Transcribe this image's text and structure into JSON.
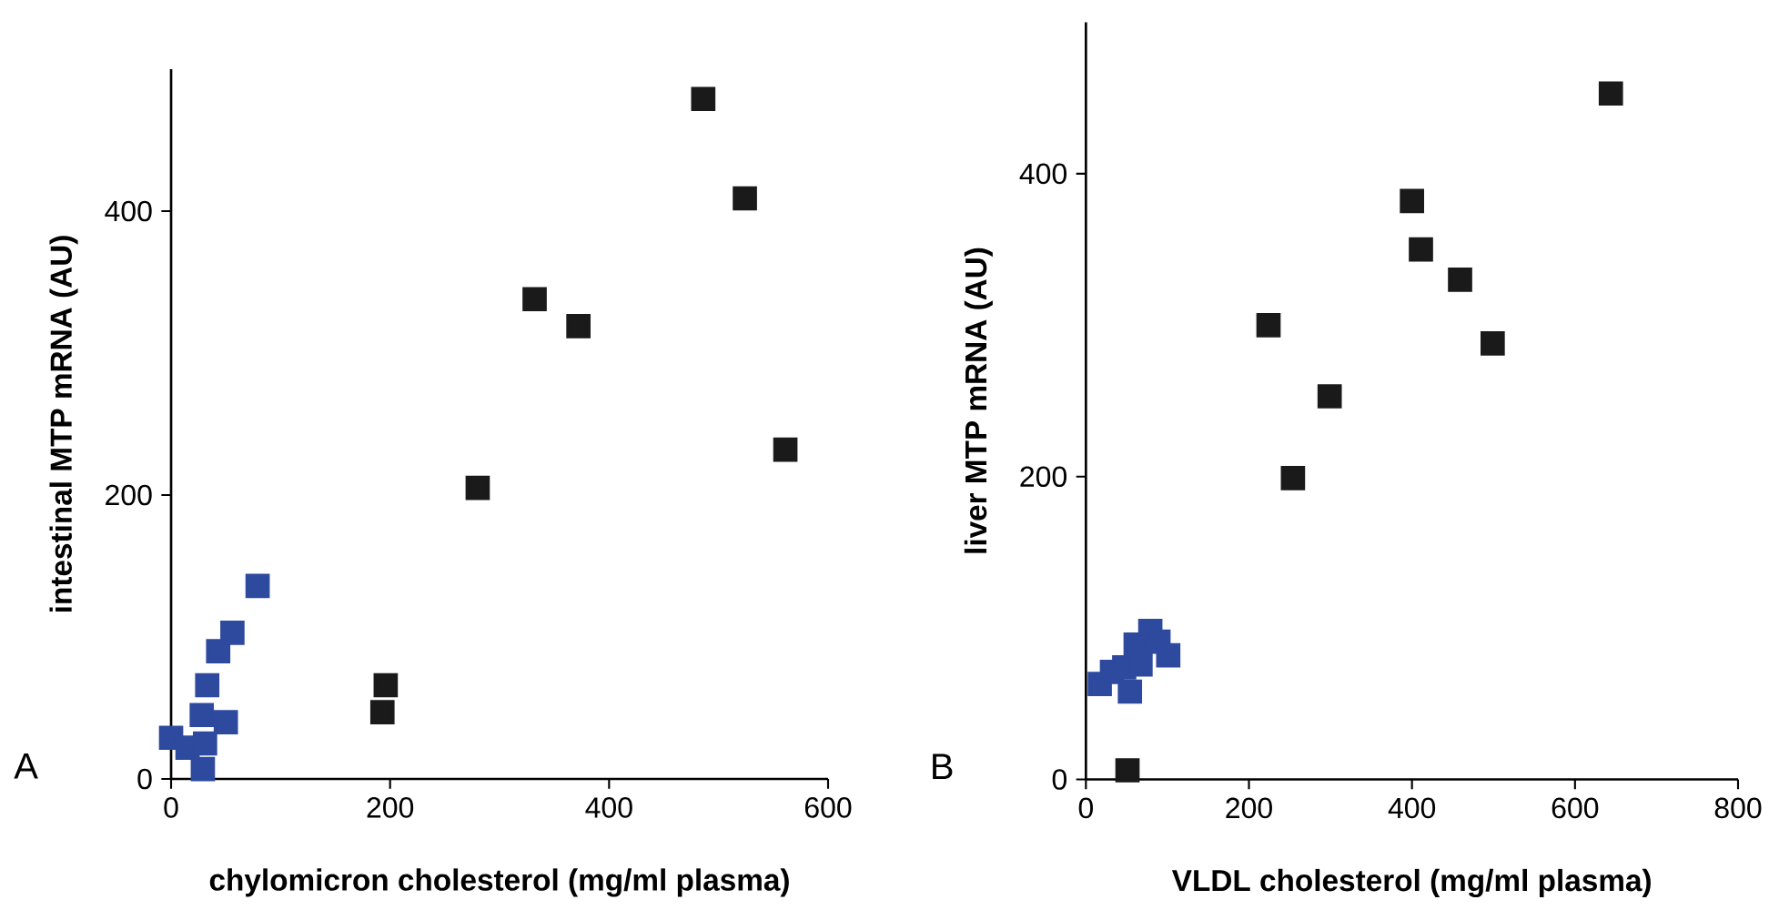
{
  "chart_data": [
    {
      "type": "scatter",
      "xlabel": "chylomicron cholesterol (mg/ml plasma)",
      "ylabel": "intestinal MTP mRNA (AU)",
      "annotations": [
        "A"
      ],
      "xlim": [
        0,
        600
      ],
      "ylim": [
        0,
        500
      ],
      "xticks": [
        0,
        200,
        400,
        600
      ],
      "yticks": [
        0,
        200,
        400
      ],
      "marker": "square",
      "series": [
        {
          "color": "#1a1a1a",
          "x": [
            486,
            524,
            332,
            372,
            561,
            280,
            196,
            193
          ],
          "values": [
            479,
            409,
            338,
            319,
            232,
            205,
            66,
            47
          ]
        },
        {
          "color": "#2e4a9e",
          "x": [
            0,
            15,
            29,
            31,
            28,
            50,
            33,
            43,
            56,
            79
          ],
          "values": [
            29,
            22,
            7,
            25,
            45,
            40,
            66,
            90,
            103,
            136
          ]
        }
      ]
    },
    {
      "type": "scatter",
      "xlabel": "VLDL cholesterol (mg/ml plasma)",
      "ylabel": "liver MTP mRNA (AU)",
      "annotations": [
        "B"
      ],
      "xlim": [
        0,
        800
      ],
      "ylim": [
        0,
        500
      ],
      "xticks": [
        0,
        200,
        400,
        600,
        800
      ],
      "yticks": [
        0,
        200,
        400
      ],
      "marker": "square",
      "series": [
        {
          "color": "#1a1a1a",
          "x": [
            644,
            400,
            411,
            459,
            499,
            224,
            299,
            254
          ],
          "values": [
            453,
            382,
            350,
            330,
            288,
            300,
            253,
            199
          ]
        },
        {
          "color": "#2e4a9e",
          "x": [
            17,
            32,
            47,
            54,
            61,
            67,
            79,
            89,
            101
          ],
          "values": [
            63,
            71,
            74,
            58,
            89,
            76,
            98,
            91,
            82
          ]
        },
        {
          "color": "#1a1a1a",
          "x": [
            51
          ],
          "values": [
            6
          ]
        }
      ]
    }
  ]
}
